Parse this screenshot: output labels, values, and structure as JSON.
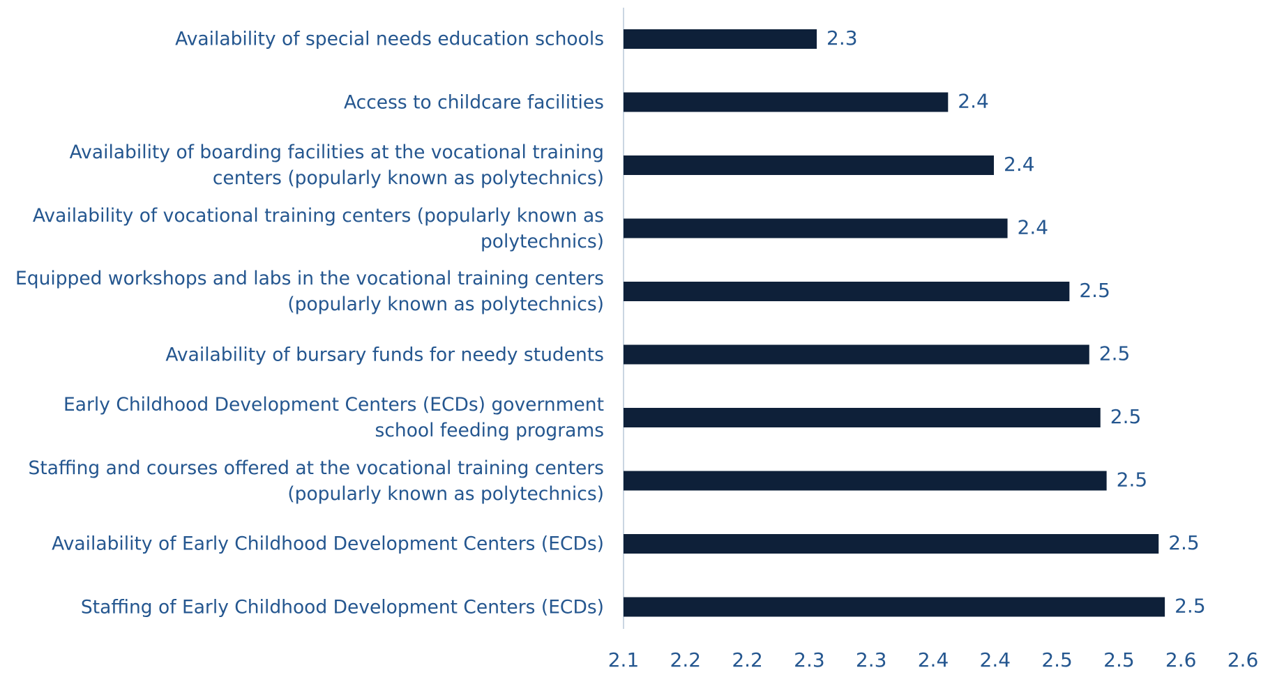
{
  "chart_data": {
    "type": "bar",
    "orientation": "horizontal",
    "categories": [
      "Availability of special needs education schools",
      "Access to childcare facilities",
      "Availability of boarding facilities at the vocational training centers (popularly known as polytechnics)",
      "Availability of vocational training centers (popularly known as polytechnics)",
      "Equipped workshops and labs in the vocational training centers (popularly known as polytechnics)",
      "Availability of bursary funds for needy students",
      "Early Childhood Development Centers (ECDs) government school feeding programs",
      "Staffing and courses offered at the vocational training centers (popularly known as polytechnics)",
      "Availability of Early Childhood Development Centers (ECDs)",
      "Staffing of Early Childhood Development Centers (ECDs)"
    ],
    "values": [
      2.256,
      2.362,
      2.399,
      2.41,
      2.46,
      2.476,
      2.485,
      2.49,
      2.532,
      2.537
    ],
    "value_labels": [
      "2.3",
      "2.4",
      "2.4",
      "2.4",
      "2.5",
      "2.5",
      "2.5",
      "2.5",
      "2.5",
      "2.5"
    ],
    "color": "#0e2039",
    "xlim": [
      2.1,
      2.6
    ],
    "xticks": [
      2.1,
      {
        "value": 2.15,
        "label": "2.2"
      },
      2.2,
      {
        "value": 2.25,
        "label": "2.3"
      },
      2.3,
      {
        "value": 2.35,
        "label": "2.4"
      },
      2.4,
      {
        "value": 2.45,
        "label": "2.5"
      },
      2.5,
      {
        "value": 2.55,
        "label": "2.6"
      },
      2.6
    ],
    "grid": false
  }
}
